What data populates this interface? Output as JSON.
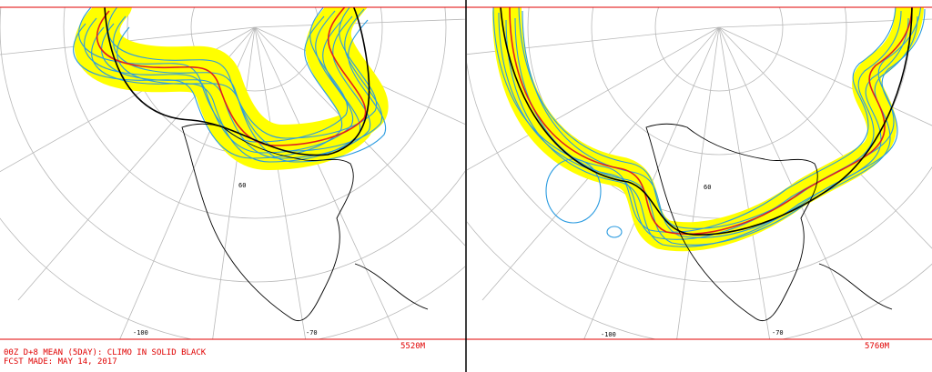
{
  "panels": [
    {
      "lat_label": "60",
      "lon_label_left": "-100",
      "lon_label_right": "-70",
      "contour_label": "5520M"
    },
    {
      "lat_label": "60",
      "lon_label_left": "-100",
      "lon_label_right": "-70",
      "contour_label": "5760M"
    }
  ],
  "footer": {
    "line1": "00Z D+8 MEAN (5DAY): CLIMO IN SOLID BLACK",
    "line2": "FCST MADE: MAY 14, 2017"
  }
}
